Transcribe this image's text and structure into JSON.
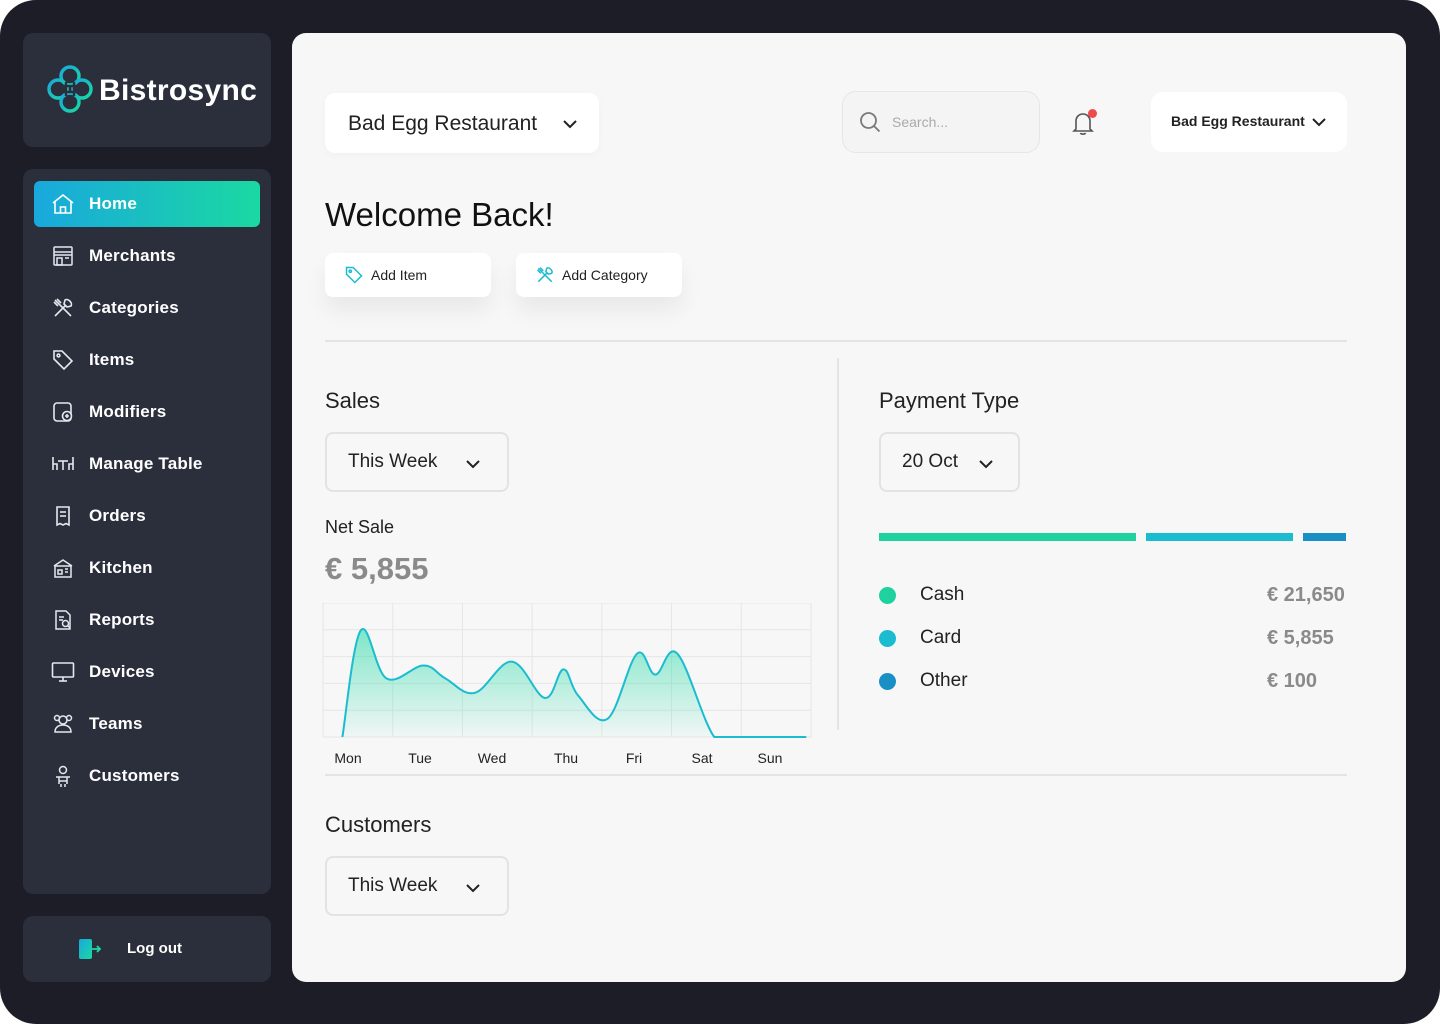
{
  "app": {
    "brand": "Bistrosync"
  },
  "sidebar": {
    "items": [
      {
        "label": "Home",
        "icon": "home-icon",
        "active": true
      },
      {
        "label": "Merchants",
        "icon": "store-icon"
      },
      {
        "label": "Categories",
        "icon": "utensils-icon"
      },
      {
        "label": "Items",
        "icon": "tag-icon"
      },
      {
        "label": "Modifiers",
        "icon": "modifier-icon"
      },
      {
        "label": "Manage Table",
        "icon": "table-icon"
      },
      {
        "label": "Orders",
        "icon": "receipt-icon"
      },
      {
        "label": "Kitchen",
        "icon": "kitchen-icon"
      },
      {
        "label": "Reports",
        "icon": "report-icon"
      },
      {
        "label": "Devices",
        "icon": "monitor-icon"
      },
      {
        "label": "Teams",
        "icon": "team-icon"
      },
      {
        "label": "Customers",
        "icon": "customer-icon"
      }
    ],
    "logout_label": "Log out"
  },
  "header": {
    "restaurant_select": "Bad Egg Restaurant",
    "search_placeholder": "Search...",
    "account_label": "Bad Egg Restaurant",
    "has_notification": true
  },
  "main": {
    "welcome": "Welcome Back!",
    "add_item_label": "Add Item",
    "add_category_label": "Add Category"
  },
  "sales": {
    "title": "Sales",
    "period": "This Week",
    "net_sale_label": "Net Sale",
    "net_sale_value": "€ 5,855"
  },
  "payment": {
    "title": "Payment Type",
    "period": "20 Oct",
    "items": [
      {
        "label": "Cash",
        "value": "€ 21,650",
        "amount": 21650,
        "color": "#1ed19e"
      },
      {
        "label": "Card",
        "value": "€ 5,855",
        "amount": 5855,
        "color": "#1bbcd0"
      },
      {
        "label": "Other",
        "value": "€ 100",
        "amount": 100,
        "color": "#1a8fc6"
      }
    ]
  },
  "customers": {
    "title": "Customers",
    "period": "This Week"
  },
  "colors": {
    "accent_start": "#19a8dd",
    "accent_end": "#1ad9a2",
    "chart_line": "#1bbcd0",
    "sidebar_bg": "#2b2f3c"
  },
  "chart_data": {
    "type": "area",
    "categories": [
      "Mon",
      "Tue",
      "Wed",
      "Thu",
      "Fri",
      "Sat",
      "Sun"
    ],
    "x": [
      0,
      0.25,
      0.6,
      1.1,
      1.4,
      1.8,
      2.3,
      2.75,
      3.0,
      3.2,
      3.6,
      4.0,
      4.25,
      4.55,
      5.05,
      5.4,
      5.6,
      5.85,
      6.3
    ],
    "series": [
      {
        "values": [
          0,
          82,
          45,
          55,
          45,
          34,
          58,
          30,
          52,
          32,
          14,
          64,
          48,
          64,
          0,
          0,
          0,
          0,
          0
        ]
      }
    ],
    "grid": true,
    "xlabel": "",
    "ylabel": ""
  }
}
